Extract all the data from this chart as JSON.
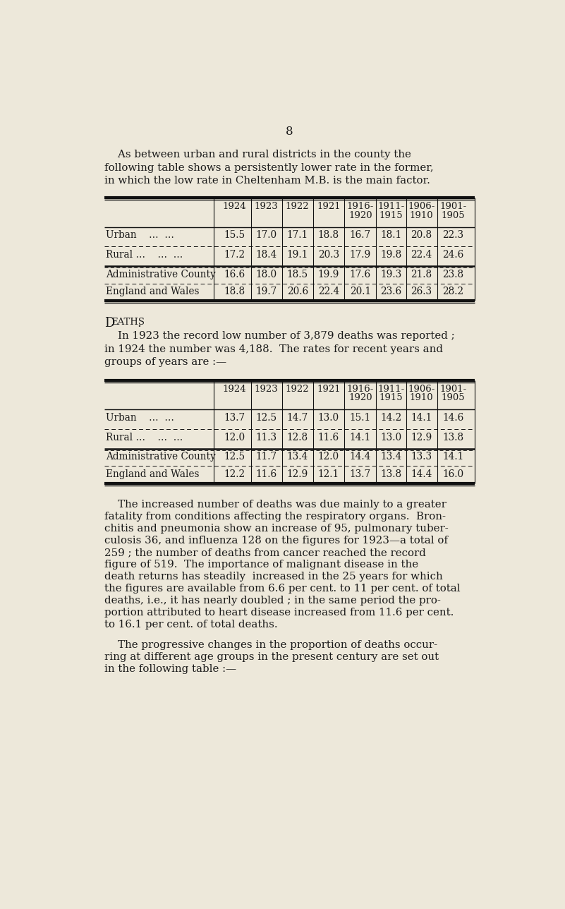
{
  "page_number": "8",
  "bg_color": "#ede8da",
  "text_color": "#1a1a1a",
  "table1_col_labels_line1": [
    "",
    "1924",
    "1923",
    "1922",
    "1921",
    "1916-",
    "1911-",
    "1906-",
    "1901-"
  ],
  "table1_col_labels_line2": [
    "",
    "",
    "",
    "",
    "",
    "1920",
    "1915",
    "1910",
    "1905"
  ],
  "table1_rows": [
    [
      "Urban    …  …",
      "15.5",
      "17.0",
      "17.1",
      "18.8",
      "16.7",
      "18.1",
      "20.8",
      "22.3"
    ],
    [
      "Rural …    …  …",
      "17.2",
      "18.4",
      "19.1",
      "20.3",
      "17.9",
      "19.8",
      "22.4",
      "24.6"
    ],
    [
      "Administrative County",
      "16.6",
      "18.0",
      "18.5",
      "19.9",
      "17.6",
      "19.3",
      "21.8",
      "23.8"
    ],
    [
      "England and Wales",
      "18.8",
      "19.7",
      "20.6",
      "22.4",
      "20.1",
      "23.6",
      "26.3",
      "28.2"
    ]
  ],
  "table2_rows": [
    [
      "Urban    …  …",
      "13.7",
      "12.5",
      "14.7",
      "13.0",
      "15.1",
      "14.2",
      "14.1",
      "14.6"
    ],
    [
      "Rural …    …  …",
      "12.0",
      "11.3",
      "12.8",
      "11.6",
      "14.1",
      "13.0",
      "12.9",
      "13.8"
    ],
    [
      "Administrative County",
      "12.5",
      "11.7",
      "13.4",
      "12.0",
      "14.4",
      "13.4",
      "13.3",
      "14.1"
    ],
    [
      "England and Wales",
      "12.2",
      "11.6",
      "12.9",
      "12.1",
      "13.7",
      "13.8",
      "14.4",
      "16.0"
    ]
  ]
}
